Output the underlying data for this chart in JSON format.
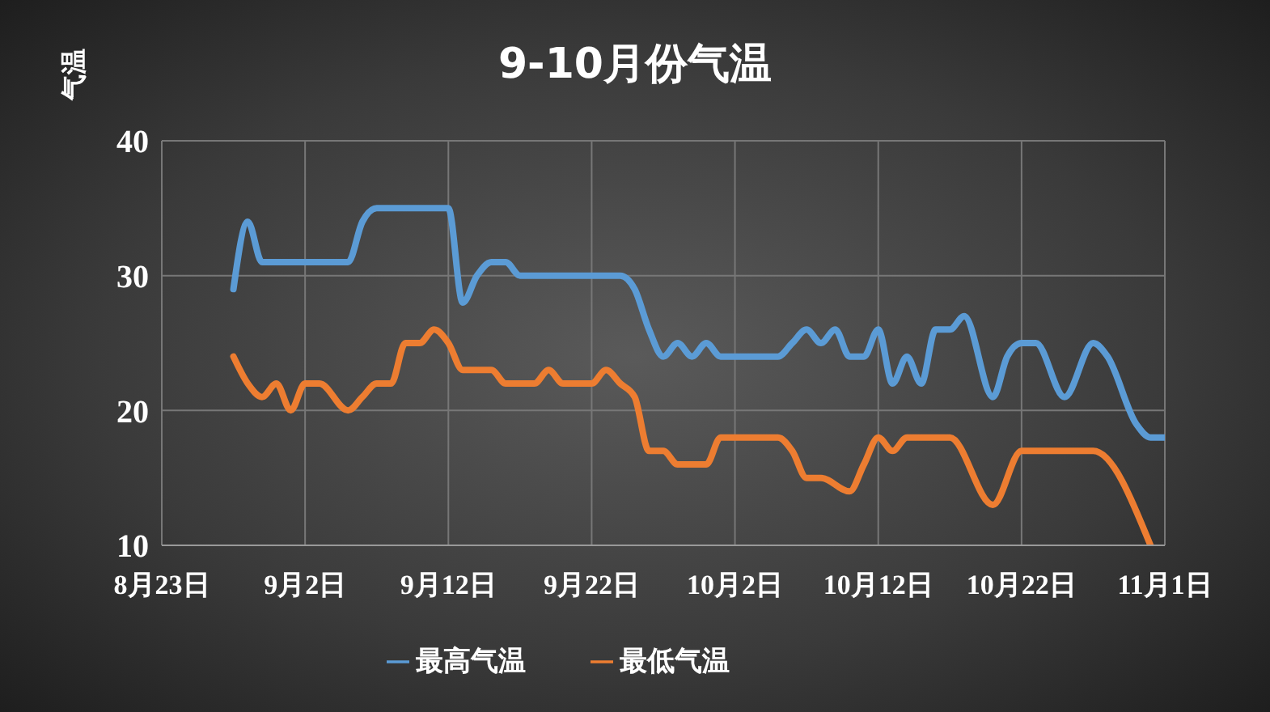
{
  "chart_data": {
    "type": "line",
    "title": "9-10月份气温",
    "ylabel": "气温",
    "xlim": [
      "--08-23",
      "--11-01"
    ],
    "xticks": [
      {
        "value": "--08-23",
        "label": "8月23日"
      },
      {
        "value": "--09-02",
        "label": "9月2日"
      },
      {
        "value": "--09-12",
        "label": "9月12日"
      },
      {
        "value": "--09-22",
        "label": "9月22日"
      },
      {
        "value": "--10-02",
        "label": "10月2日"
      },
      {
        "value": "--10-12",
        "label": "10月12日"
      },
      {
        "value": "--10-22",
        "label": "10月22日"
      },
      {
        "value": "--11-01",
        "label": "11月1日"
      }
    ],
    "ylim": [
      10,
      40
    ],
    "yticks": [
      10,
      20,
      30,
      40
    ],
    "grid": true,
    "legend": "bottom",
    "marker": "none",
    "line_style": "solid",
    "series": [
      {
        "name": "最高气温",
        "color": "#5b9bd5",
        "x": [
          "--08-28",
          "--08-29",
          "--08-30",
          "--08-31",
          "--09-04",
          "--09-05",
          "--09-06",
          "--09-07",
          "--09-11",
          "--09-12",
          "--09-13",
          "--09-14",
          "--09-15",
          "--09-16",
          "--09-17",
          "--09-24",
          "--09-25",
          "--09-26",
          "--09-27",
          "--09-28",
          "--09-29",
          "--09-30",
          "--10-01",
          "--10-02",
          "--10-05",
          "--10-06",
          "--10-07",
          "--10-08",
          "--10-09",
          "--10-10",
          "--10-11",
          "--10-12",
          "--10-13",
          "--10-14",
          "--10-15",
          "--10-16",
          "--10-17",
          "--10-18",
          "--10-20",
          "--10-21",
          "--10-22",
          "--10-23",
          "--10-25",
          "--10-27",
          "--10-28",
          "--10-30",
          "--10-31",
          "--11-01"
        ],
        "values": [
          29,
          34,
          31,
          31,
          31,
          31,
          34,
          35,
          35,
          35,
          28,
          30,
          31,
          31,
          30,
          30,
          29,
          26,
          24,
          25,
          24,
          25,
          24,
          24,
          24,
          25,
          26,
          25,
          26,
          24,
          24,
          26,
          22,
          24,
          22,
          26,
          26,
          27,
          21,
          24,
          25,
          25,
          21,
          25,
          24,
          19,
          18,
          18
        ]
      },
      {
        "name": "最低气温",
        "color": "#ed7d31",
        "x": [
          "--08-28",
          "--08-29",
          "--08-30",
          "--08-31",
          "--09-01",
          "--09-02",
          "--09-03",
          "--09-05",
          "--09-06",
          "--09-07",
          "--09-08",
          "--09-09",
          "--09-10",
          "--09-11",
          "--09-12",
          "--09-13",
          "--09-15",
          "--09-16",
          "--09-18",
          "--09-19",
          "--09-20",
          "--09-22",
          "--09-23",
          "--09-24",
          "--09-25",
          "--09-26",
          "--09-27",
          "--09-28",
          "--09-30",
          "--10-01",
          "--10-05",
          "--10-06",
          "--10-07",
          "--10-08",
          "--10-10",
          "--10-11",
          "--10-12",
          "--10-13",
          "--10-14",
          "--10-17",
          "--10-20",
          "--10-22",
          "--10-27",
          "--10-31"
        ],
        "values": [
          24,
          22,
          21,
          22,
          20,
          22,
          22,
          20,
          21,
          22,
          22,
          25,
          25,
          26,
          25,
          23,
          23,
          22,
          22,
          23,
          22,
          22,
          23,
          22,
          21,
          17,
          17,
          16,
          16,
          18,
          18,
          17,
          15,
          15,
          14,
          16,
          18,
          17,
          18,
          18,
          13,
          17,
          17,
          10
        ]
      }
    ]
  }
}
